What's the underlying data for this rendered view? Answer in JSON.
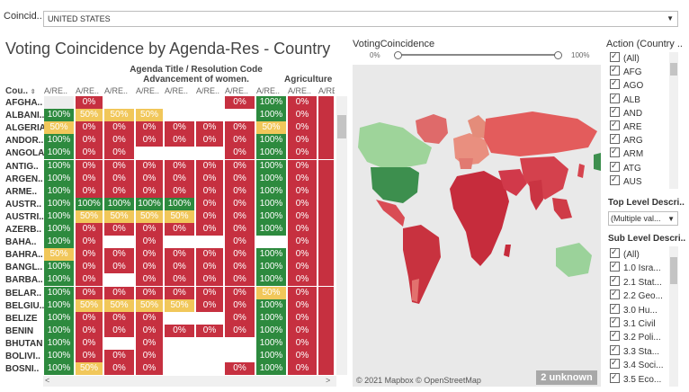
{
  "filter": {
    "label": "Coincid..",
    "value": "UNITED STATES"
  },
  "title": "Voting Coincidence by Agenda-Res - Country",
  "table": {
    "agenda_header": "Agenda Title / Resolution Code",
    "agenda_group": "Advancement of women.",
    "agenda_group2": "Agriculture",
    "country_header": "Cou..",
    "sort_icon": "sort-icon",
    "col_headers": [
      "A/RE..",
      "A/RE..",
      "A/RE..",
      "A/RE..",
      "A/RE..",
      "A/RE..",
      "A/RE..",
      "A/RE..",
      "A/RE..",
      "A/RE.."
    ],
    "rows": [
      {
        "name": "AFGHA..",
        "cells": [
          [
            "e",
            ""
          ],
          [
            "r",
            "0%"
          ],
          [
            "w",
            ""
          ],
          [
            "w",
            ""
          ],
          [
            "w",
            ""
          ],
          [
            "w",
            ""
          ],
          [
            "r",
            "0%"
          ],
          [
            "g",
            "100%"
          ],
          [
            "r",
            "0%"
          ],
          [
            "r",
            ""
          ]
        ]
      },
      {
        "name": "ALBANI..",
        "cells": [
          [
            "g",
            "100%"
          ],
          [
            "y",
            "50%"
          ],
          [
            "y",
            "50%"
          ],
          [
            "y",
            "50%"
          ],
          [
            "w",
            ""
          ],
          [
            "w",
            ""
          ],
          [
            "w",
            ""
          ],
          [
            "g",
            "100%"
          ],
          [
            "r",
            "0%"
          ],
          [
            "r",
            ""
          ]
        ]
      },
      {
        "name": "ALGERIA",
        "cells": [
          [
            "y",
            "50%"
          ],
          [
            "r",
            "0%"
          ],
          [
            "r",
            "0%"
          ],
          [
            "r",
            "0%"
          ],
          [
            "r",
            "0%"
          ],
          [
            "r",
            "0%"
          ],
          [
            "r",
            "0%"
          ],
          [
            "y",
            "50%"
          ],
          [
            "r",
            "0%"
          ],
          [
            "r",
            ""
          ]
        ]
      },
      {
        "name": "ANDOR..",
        "cells": [
          [
            "g",
            "100%"
          ],
          [
            "r",
            "0%"
          ],
          [
            "r",
            "0%"
          ],
          [
            "r",
            "0%"
          ],
          [
            "r",
            "0%"
          ],
          [
            "r",
            "0%"
          ],
          [
            "r",
            "0%"
          ],
          [
            "g",
            "100%"
          ],
          [
            "r",
            "0%"
          ],
          [
            "r",
            ""
          ]
        ]
      },
      {
        "name": "ANGOLA",
        "cells": [
          [
            "g",
            "100%"
          ],
          [
            "r",
            "0%"
          ],
          [
            "r",
            "0%"
          ],
          [
            "w",
            ""
          ],
          [
            "w",
            ""
          ],
          [
            "w",
            ""
          ],
          [
            "r",
            "0%"
          ],
          [
            "g",
            "100%"
          ],
          [
            "r",
            "0%"
          ],
          [
            "r",
            ""
          ]
        ]
      },
      {
        "name": "ANTIG..",
        "cells": [
          [
            "g",
            "100%"
          ],
          [
            "r",
            "0%"
          ],
          [
            "r",
            "0%"
          ],
          [
            "r",
            "0%"
          ],
          [
            "r",
            "0%"
          ],
          [
            "r",
            "0%"
          ],
          [
            "r",
            "0%"
          ],
          [
            "g",
            "100%"
          ],
          [
            "r",
            "0%"
          ],
          [
            "r",
            ""
          ]
        ]
      },
      {
        "name": "ARGEN..",
        "cells": [
          [
            "g",
            "100%"
          ],
          [
            "r",
            "0%"
          ],
          [
            "r",
            "0%"
          ],
          [
            "r",
            "0%"
          ],
          [
            "r",
            "0%"
          ],
          [
            "r",
            "0%"
          ],
          [
            "r",
            "0%"
          ],
          [
            "g",
            "100%"
          ],
          [
            "r",
            "0%"
          ],
          [
            "r",
            ""
          ]
        ]
      },
      {
        "name": "ARME..",
        "cells": [
          [
            "g",
            "100%"
          ],
          [
            "r",
            "0%"
          ],
          [
            "r",
            "0%"
          ],
          [
            "r",
            "0%"
          ],
          [
            "r",
            "0%"
          ],
          [
            "r",
            "0%"
          ],
          [
            "r",
            "0%"
          ],
          [
            "g",
            "100%"
          ],
          [
            "r",
            "0%"
          ],
          [
            "r",
            ""
          ]
        ]
      },
      {
        "name": "AUSTR..",
        "cells": [
          [
            "g",
            "100%"
          ],
          [
            "g",
            "100%"
          ],
          [
            "g",
            "100%"
          ],
          [
            "g",
            "100%"
          ],
          [
            "g",
            "100%"
          ],
          [
            "r",
            "0%"
          ],
          [
            "r",
            "0%"
          ],
          [
            "g",
            "100%"
          ],
          [
            "r",
            "0%"
          ],
          [
            "r",
            ""
          ]
        ]
      },
      {
        "name": "AUSTRI..",
        "cells": [
          [
            "g",
            "100%"
          ],
          [
            "y",
            "50%"
          ],
          [
            "y",
            "50%"
          ],
          [
            "y",
            "50%"
          ],
          [
            "y",
            "50%"
          ],
          [
            "r",
            "0%"
          ],
          [
            "r",
            "0%"
          ],
          [
            "g",
            "100%"
          ],
          [
            "r",
            "0%"
          ],
          [
            "r",
            ""
          ]
        ]
      },
      {
        "name": "AZERB..",
        "cells": [
          [
            "g",
            "100%"
          ],
          [
            "r",
            "0%"
          ],
          [
            "r",
            "0%"
          ],
          [
            "r",
            "0%"
          ],
          [
            "r",
            "0%"
          ],
          [
            "r",
            "0%"
          ],
          [
            "r",
            "0%"
          ],
          [
            "g",
            "100%"
          ],
          [
            "r",
            "0%"
          ],
          [
            "r",
            ""
          ]
        ]
      },
      {
        "name": "BAHA..",
        "cells": [
          [
            "g",
            "100%"
          ],
          [
            "r",
            "0%"
          ],
          [
            "w",
            ""
          ],
          [
            "r",
            "0%"
          ],
          [
            "w",
            ""
          ],
          [
            "w",
            ""
          ],
          [
            "r",
            "0%"
          ],
          [
            "w",
            ""
          ],
          [
            "r",
            "0%"
          ],
          [
            "r",
            ""
          ]
        ]
      },
      {
        "name": "BAHRA..",
        "cells": [
          [
            "y",
            "50%"
          ],
          [
            "r",
            "0%"
          ],
          [
            "r",
            "0%"
          ],
          [
            "r",
            "0%"
          ],
          [
            "r",
            "0%"
          ],
          [
            "r",
            "0%"
          ],
          [
            "r",
            "0%"
          ],
          [
            "g",
            "100%"
          ],
          [
            "r",
            "0%"
          ],
          [
            "r",
            ""
          ]
        ]
      },
      {
        "name": "BANGL..",
        "cells": [
          [
            "g",
            "100%"
          ],
          [
            "r",
            "0%"
          ],
          [
            "r",
            "0%"
          ],
          [
            "r",
            "0%"
          ],
          [
            "r",
            "0%"
          ],
          [
            "r",
            "0%"
          ],
          [
            "r",
            "0%"
          ],
          [
            "g",
            "100%"
          ],
          [
            "r",
            "0%"
          ],
          [
            "r",
            ""
          ]
        ]
      },
      {
        "name": "BARBA..",
        "cells": [
          [
            "g",
            "100%"
          ],
          [
            "r",
            "0%"
          ],
          [
            "w",
            ""
          ],
          [
            "r",
            "0%"
          ],
          [
            "r",
            "0%"
          ],
          [
            "r",
            "0%"
          ],
          [
            "r",
            "0%"
          ],
          [
            "g",
            "100%"
          ],
          [
            "r",
            "0%"
          ],
          [
            "r",
            ""
          ]
        ]
      },
      {
        "name": "BELAR..",
        "cells": [
          [
            "g",
            "100%"
          ],
          [
            "r",
            "0%"
          ],
          [
            "r",
            "0%"
          ],
          [
            "r",
            "0%"
          ],
          [
            "r",
            "0%"
          ],
          [
            "r",
            "0%"
          ],
          [
            "r",
            "0%"
          ],
          [
            "y",
            "50%"
          ],
          [
            "r",
            "0%"
          ],
          [
            "r",
            ""
          ]
        ]
      },
      {
        "name": "BELGIU..",
        "cells": [
          [
            "g",
            "100%"
          ],
          [
            "y",
            "50%"
          ],
          [
            "y",
            "50%"
          ],
          [
            "y",
            "50%"
          ],
          [
            "y",
            "50%"
          ],
          [
            "r",
            "0%"
          ],
          [
            "r",
            "0%"
          ],
          [
            "g",
            "100%"
          ],
          [
            "r",
            "0%"
          ],
          [
            "r",
            ""
          ]
        ]
      },
      {
        "name": "BELIZE",
        "cells": [
          [
            "g",
            "100%"
          ],
          [
            "r",
            "0%"
          ],
          [
            "r",
            "0%"
          ],
          [
            "r",
            "0%"
          ],
          [
            "w",
            ""
          ],
          [
            "w",
            ""
          ],
          [
            "r",
            "0%"
          ],
          [
            "g",
            "100%"
          ],
          [
            "r",
            "0%"
          ],
          [
            "r",
            ""
          ]
        ]
      },
      {
        "name": "BENIN",
        "cells": [
          [
            "g",
            "100%"
          ],
          [
            "r",
            "0%"
          ],
          [
            "r",
            "0%"
          ],
          [
            "r",
            "0%"
          ],
          [
            "r",
            "0%"
          ],
          [
            "r",
            "0%"
          ],
          [
            "r",
            "0%"
          ],
          [
            "g",
            "100%"
          ],
          [
            "r",
            "0%"
          ],
          [
            "r",
            ""
          ]
        ]
      },
      {
        "name": "BHUTAN",
        "cells": [
          [
            "g",
            "100%"
          ],
          [
            "r",
            "0%"
          ],
          [
            "w",
            ""
          ],
          [
            "r",
            "0%"
          ],
          [
            "w",
            ""
          ],
          [
            "w",
            ""
          ],
          [
            "w",
            ""
          ],
          [
            "g",
            "100%"
          ],
          [
            "r",
            "0%"
          ],
          [
            "r",
            ""
          ]
        ]
      },
      {
        "name": "BOLIVI..",
        "cells": [
          [
            "g",
            "100%"
          ],
          [
            "r",
            "0%"
          ],
          [
            "r",
            "0%"
          ],
          [
            "r",
            "0%"
          ],
          [
            "w",
            ""
          ],
          [
            "w",
            ""
          ],
          [
            "w",
            ""
          ],
          [
            "g",
            "100%"
          ],
          [
            "r",
            "0%"
          ],
          [
            "r",
            ""
          ]
        ]
      },
      {
        "name": "BOSNI..",
        "cells": [
          [
            "g",
            "100%"
          ],
          [
            "y",
            "50%"
          ],
          [
            "r",
            "0%"
          ],
          [
            "r",
            "0%"
          ],
          [
            "w",
            ""
          ],
          [
            "w",
            ""
          ],
          [
            "r",
            "0%"
          ],
          [
            "g",
            "100%"
          ],
          [
            "r",
            "0%"
          ],
          [
            "r",
            ""
          ]
        ]
      }
    ]
  },
  "legend": {
    "label": "VotingCoincidence",
    "min": "0%",
    "max": "100%"
  },
  "map": {
    "attribution": "© 2021 Mapbox © OpenStreetMap",
    "unknown_badge": "2 unknown"
  },
  "action_filter": {
    "label": "Action (Country ..",
    "items": [
      "(All)",
      "AFG",
      "AGO",
      "ALB",
      "AND",
      "ARE",
      "ARG",
      "ARM",
      "ATG",
      "AUS"
    ]
  },
  "top_level": {
    "label": "Top Level Descri..",
    "value": "(Multiple val..."
  },
  "sub_level": {
    "label": "Sub Level Descri..",
    "items": [
      "(All)",
      "1.0 Isra...",
      "2.1 Stat...",
      "2.2 Geo...",
      "3.0 Hu...",
      "3.1 Civil",
      "3.2 Poli...",
      "3.3 Sta...",
      "3.4 Soci...",
      "3.5 Eco..."
    ]
  },
  "colors": {
    "green": "#2d8a3e",
    "red": "#c63040",
    "yellow": "#f1c75a"
  }
}
